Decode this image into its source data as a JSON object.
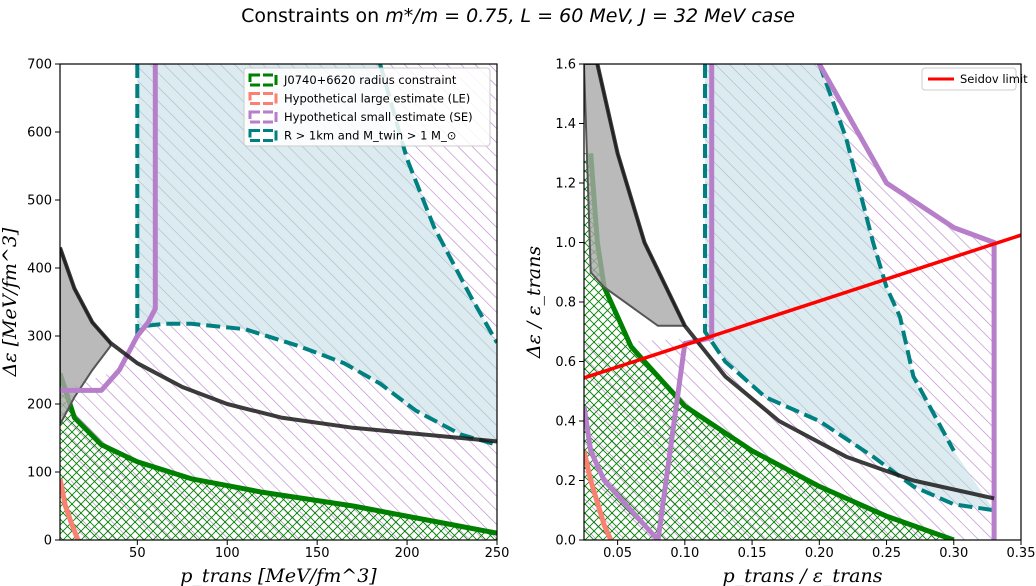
{
  "figure": {
    "title_prefix": "Constraints on ",
    "title_math": "m*/m = 0.75, L = 60 MeV, J = 32 MeV case"
  },
  "colors": {
    "green": "#008000",
    "salmon": "#fa8072",
    "purple": "#b77fc9",
    "teal": "#008080",
    "teal_fill": "#d6e8ec",
    "gray": "#a9a9a9",
    "black": "#1a1a1a",
    "red": "#ff0000",
    "dark_purple": "#4b0f52"
  },
  "chart_data": [
    {
      "type": "area",
      "title": "",
      "xlabel": "p_trans [MeV/fm^3]",
      "ylabel": "Δε [MeV/fm^3]",
      "xlim": [
        7,
        250
      ],
      "ylim": [
        0,
        700
      ],
      "xticks": [
        "50",
        "100",
        "150",
        "200",
        "250"
      ],
      "xtick_values": [
        50,
        100,
        150,
        200,
        250
      ],
      "yticks": [
        "0",
        "100",
        "200",
        "300",
        "400",
        "500",
        "600",
        "700"
      ],
      "ytick_values": [
        0,
        100,
        200,
        300,
        400,
        500,
        600,
        700
      ],
      "legend_position": "top-right",
      "legend": [
        {
          "label": "J0740+6620 radius constraint",
          "color": "#008000",
          "style": "dashed-box"
        },
        {
          "label": "Hypothetical large estimate (LE)",
          "color": "#fa8072",
          "style": "dashed-box"
        },
        {
          "label": "Hypothetical small estimate (SE)",
          "color": "#b77fc9",
          "style": "dashed-box"
        },
        {
          "label": "R > 1km and M_twin > 1 M_⊙",
          "color": "#008080",
          "style": "dashed-box"
        }
      ],
      "series": [
        {
          "name": "J0740+6620 radius constraint boundary",
          "x": [
            7,
            15,
            30,
            50,
            80,
            120,
            170,
            220,
            250
          ],
          "y": [
            245,
            180,
            140,
            115,
            90,
            70,
            50,
            25,
            10
          ]
        },
        {
          "name": "Hypothetical large estimate (LE)",
          "x": [
            7,
            10,
            14,
            17
          ],
          "y": [
            90,
            50,
            20,
            0
          ]
        },
        {
          "name": "Hypothetical small estimate (SE) boundary",
          "x": [
            7,
            20,
            30,
            40,
            50,
            56,
            60,
            60
          ],
          "y": [
            220,
            220,
            220,
            250,
            300,
            320,
            340,
            700
          ]
        },
        {
          "name": "Teal region boundary",
          "x": [
            50,
            50,
            55,
            65,
            80,
            110,
            140,
            165,
            185,
            205,
            230,
            250
          ],
          "y": [
            700,
            305,
            315,
            318,
            318,
            310,
            285,
            260,
            230,
            190,
            155,
            140
          ]
        },
        {
          "name": "Teal region upper boundary",
          "x": [
            185,
            200,
            215,
            235,
            250
          ],
          "y": [
            700,
            560,
            460,
            360,
            290
          ]
        },
        {
          "name": "Black curve",
          "x": [
            7,
            15,
            25,
            35,
            50,
            75,
            100,
            130,
            170,
            210,
            250
          ],
          "y": [
            430,
            370,
            320,
            290,
            260,
            225,
            200,
            180,
            165,
            155,
            145
          ]
        },
        {
          "name": "Gray region lower edge",
          "x": [
            7,
            15,
            25,
            35
          ],
          "y": [
            170,
            210,
            250,
            285
          ]
        }
      ]
    },
    {
      "type": "area",
      "title": "",
      "xlabel": "p_trans / ε_trans",
      "ylabel": "Δε / ε_trans",
      "xlim": [
        0.025,
        0.35
      ],
      "ylim": [
        0,
        1.6
      ],
      "xticks": [
        "0.05",
        "0.10",
        "0.15",
        "0.20",
        "0.25",
        "0.30",
        "0.35"
      ],
      "xtick_values": [
        0.05,
        0.1,
        0.15,
        0.2,
        0.25,
        0.3,
        0.35
      ],
      "yticks": [
        "0.0",
        "0.2",
        "0.4",
        "0.6",
        "0.8",
        "1.0",
        "1.2",
        "1.4",
        "1.6"
      ],
      "ytick_values": [
        0,
        0.2,
        0.4,
        0.6,
        0.8,
        1.0,
        1.2,
        1.4,
        1.6
      ],
      "legend_position": "top-right",
      "legend": [
        {
          "label": "Seidov limit",
          "color": "#ff0000",
          "style": "line"
        }
      ],
      "series": [
        {
          "name": "Seidov limit",
          "x": [
            0.025,
            0.35
          ],
          "y": [
            0.545,
            1.025
          ]
        },
        {
          "name": "J0740+6620 radius constraint boundary",
          "x": [
            0.03,
            0.035,
            0.04,
            0.06,
            0.1,
            0.15,
            0.2,
            0.25,
            0.3
          ],
          "y": [
            1.3,
            1.0,
            0.85,
            0.65,
            0.45,
            0.3,
            0.18,
            0.08,
            0.0
          ]
        },
        {
          "name": "Hypothetical large estimate (LE)",
          "x": [
            0.025,
            0.03,
            0.04,
            0.045
          ],
          "y": [
            0.3,
            0.2,
            0.05,
            0.0
          ]
        },
        {
          "name": "Hypothetical small estimate (SE) boundary",
          "x": [
            0.025,
            0.03,
            0.04,
            0.06,
            0.08,
            0.1,
            0.12,
            0.12
          ],
          "y": [
            0.45,
            0.3,
            0.2,
            0.1,
            0.0,
            0.66,
            0.68,
            1.6
          ]
        },
        {
          "name": "Teal region boundary",
          "x": [
            0.115,
            0.115,
            0.13,
            0.16,
            0.2,
            0.24,
            0.27,
            0.3,
            0.33
          ],
          "y": [
            1.6,
            0.7,
            0.6,
            0.48,
            0.4,
            0.28,
            0.18,
            0.12,
            0.1
          ]
        },
        {
          "name": "Teal region upper boundary",
          "x": [
            0.2,
            0.22,
            0.24,
            0.25,
            0.26,
            0.27,
            0.3
          ],
          "y": [
            1.6,
            1.35,
            1.0,
            0.85,
            0.75,
            0.55,
            0.3
          ]
        },
        {
          "name": "Black curve",
          "x": [
            0.035,
            0.05,
            0.07,
            0.1,
            0.13,
            0.17,
            0.22,
            0.27,
            0.33
          ],
          "y": [
            1.6,
            1.3,
            1.0,
            0.72,
            0.55,
            0.4,
            0.28,
            0.2,
            0.14
          ]
        },
        {
          "name": "SE outer boundary",
          "x": [
            0.2,
            0.25,
            0.3,
            0.33,
            0.33
          ],
          "y": [
            1.6,
            1.2,
            1.05,
            1.0,
            0.0
          ]
        }
      ]
    }
  ]
}
